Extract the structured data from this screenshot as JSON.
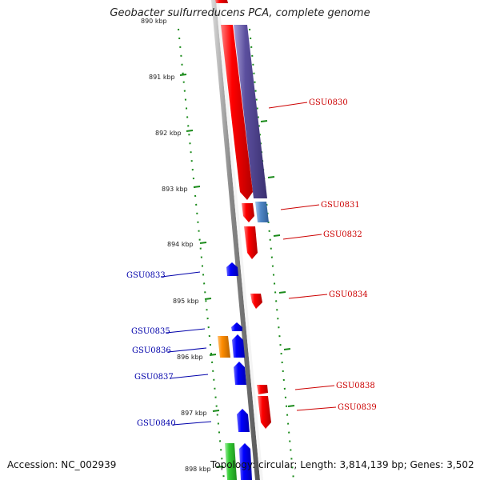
{
  "header": {
    "title": "Geobacter sulfurreducens PCA, complete genome"
  },
  "footer": {
    "accession": "Accession: NC_002939",
    "summary": "Topology: circular; Length: 3,814,139 bp; Genes: 3,502"
  },
  "scale": {
    "labels": [
      "890 kbp",
      "891 kbp",
      "892 kbp",
      "893 kbp",
      "894 kbp",
      "895 kbp",
      "896 kbp",
      "897 kbp",
      "898 kbp"
    ]
  },
  "genes": [
    {
      "id": "GSU0830",
      "color": "#cc0000"
    },
    {
      "id": "GSU0831",
      "color": "#cc0000"
    },
    {
      "id": "GSU0832",
      "color": "#cc0000"
    },
    {
      "id": "GSU0833",
      "color": "#0000aa"
    },
    {
      "id": "GSU0834",
      "color": "#cc0000"
    },
    {
      "id": "GSU0835",
      "color": "#0000aa"
    },
    {
      "id": "GSU0836",
      "color": "#0000aa"
    },
    {
      "id": "GSU0837",
      "color": "#0000aa"
    },
    {
      "id": "GSU0838",
      "color": "#cc0000"
    },
    {
      "id": "GSU0839",
      "color": "#cc0000"
    },
    {
      "id": "GSU0840",
      "color": "#0000aa"
    }
  ],
  "colors": {
    "forward_gene": "#ff0000",
    "reverse_gene": "#0000ff",
    "cds_purple": "#5b4f9e",
    "cds_steelblue": "#4f86c6",
    "cds_orange": "#ff8c00",
    "cds_green": "#33cc33",
    "backbone": "#888888",
    "tick": "#1a8a1a"
  }
}
